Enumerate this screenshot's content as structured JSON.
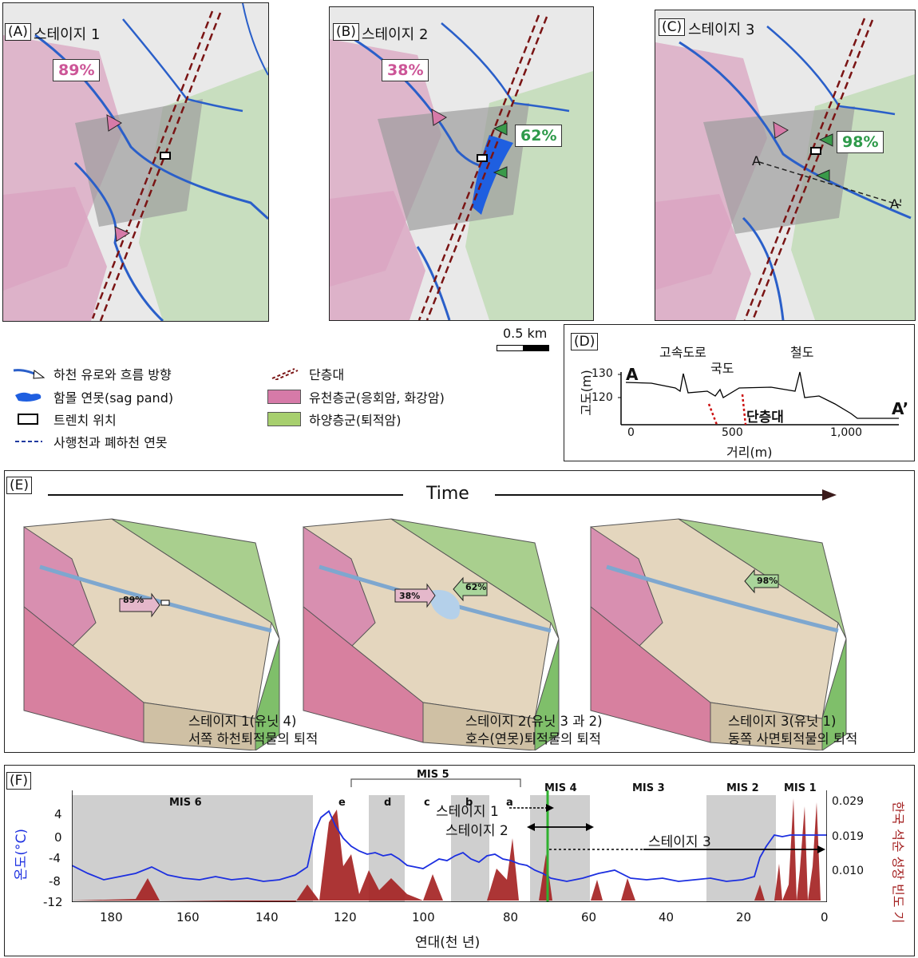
{
  "panels": {
    "a": {
      "label": "(A)",
      "title": "스테이지 1",
      "pct": "89%"
    },
    "b": {
      "label": "(B)",
      "title": "스테이지 2",
      "pct_left": "38%",
      "pct_right": "62%"
    },
    "c": {
      "label": "(C)",
      "title": "스테이지 3",
      "pct": "98%",
      "section_a": "A",
      "section_a2": "A'"
    }
  },
  "scalebar": "0.5 km",
  "legend": [
    {
      "label": "하천 유로와 흐름 방향"
    },
    {
      "label": "함몰 연못(sag pand)"
    },
    {
      "label": "트렌치 위치"
    },
    {
      "label": "사행천과 폐하천 연못"
    },
    {
      "label": "단층대"
    },
    {
      "label": "유천층군(응회암, 화강암)"
    },
    {
      "label": "하양층군(퇴적암)"
    }
  ],
  "profile": {
    "label": "(D)",
    "ylabel": "고도(m)",
    "xlabel": "거리(m)",
    "yticks": [
      "130",
      "120"
    ],
    "xticks": [
      "0",
      "500",
      "1,000"
    ],
    "start": "A",
    "end": "A’",
    "annotations": {
      "highway": "고속도로",
      "road": "국도",
      "rail": "철도",
      "fault": "단층대"
    }
  },
  "blocks": {
    "label": "(E)",
    "time": "Time",
    "stage1_pct": "89%",
    "stage2_pct_left": "38%",
    "stage2_pct_right": "62%",
    "stage3_pct": "98%",
    "captions": [
      {
        "line1": "스테이지 1(유닛 4)",
        "line2": "서쪽 하천퇴적물의 퇴적"
      },
      {
        "line1": "스테이지 2(유닛 3 과 2)",
        "line2": "호수(연못)퇴적물의 퇴적"
      },
      {
        "line1": "스테이지 3(유닛 1)",
        "line2": "동쪽 사면퇴적물의 퇴적"
      }
    ]
  },
  "timeline": {
    "label": "(F)",
    "ylabel_left": "온도(°C)",
    "ylabel_right": "한국 석순 성장 빈도 기",
    "xlabel": "연대(천 년)",
    "mis": [
      "MIS 6",
      "MIS 5",
      "e",
      "d",
      "c",
      "b",
      "a",
      "MIS 4",
      "MIS 3",
      "MIS 2",
      "MIS 1"
    ],
    "stage_labels": [
      "스테이지 1",
      "스테이지 2",
      "스테이지 3"
    ],
    "left_ticks": [
      "4",
      "0",
      "-4",
      "-8",
      "-12"
    ],
    "right_ticks": [
      "0.029",
      "0.019",
      "0.010"
    ],
    "x_ticks": [
      "180",
      "160",
      "140",
      "120",
      "100",
      "80",
      "60",
      "40",
      "20",
      "0"
    ]
  },
  "colors": {
    "river": "#2a5fc9",
    "fault": "#7a1414",
    "yucheon": "#d67aa8",
    "hayang": "#8fc46a",
    "sag": "#1f5fe0",
    "temp": "#1c2fe0",
    "speleo": "#a31f1f",
    "pct_pink": "#cc5597",
    "pct_green": "#2e9a4a"
  }
}
